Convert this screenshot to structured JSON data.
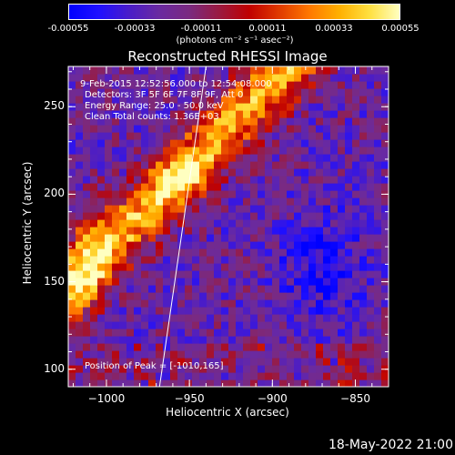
{
  "colorbar": {
    "ticks": [
      "-0.00055",
      "-0.00033",
      "-0.00011",
      "0.00011",
      "0.00033",
      "0.00055"
    ],
    "unit_label": "(photons cm⁻² s⁻¹ asec⁻²)",
    "colormap": [
      "#0000ff",
      "#2010ff",
      "#4a1cc8",
      "#6a2aa0",
      "#7a2a80",
      "#9a1a40",
      "#c00000",
      "#e03a00",
      "#ff7800",
      "#ffb000",
      "#ffe040",
      "#ffffc0"
    ]
  },
  "chart_data": {
    "type": "heatmap",
    "title": "Reconstructed RHESSI Image",
    "xlabel": "Heliocentric X (arcsec)",
    "ylabel": "Heliocentric Y (arcsec)",
    "xlim": [
      -1023,
      -830
    ],
    "ylim": [
      90,
      273
    ],
    "xticks": [
      -1000,
      -950,
      -900,
      -850
    ],
    "yticks": [
      100,
      150,
      200,
      250
    ],
    "x_tick_labels": [
      "−1000",
      "−950",
      "−900",
      "−850"
    ],
    "y_tick_labels": [
      "100",
      "150",
      "200",
      "250"
    ],
    "value_range": [
      -0.00055,
      0.00055
    ],
    "limb_line": {
      "x": [
        -968,
        -940
      ],
      "y": [
        90,
        273
      ]
    },
    "peak": {
      "x": -1010,
      "y": 165
    },
    "annotations": [
      "9-Feb-2015 12:52:56.000 to 12:54:08.000",
      "Detectors: 3F 5F 6F 7F 8F 9F, Att 0",
      "Energy Range: 25.0 - 50.0 keV",
      "Clean    Total counts: 1.36E+03"
    ],
    "peak_label": "Position of Peak = [-1010,165]"
  },
  "footer_date": "18-May-2022 21:00"
}
